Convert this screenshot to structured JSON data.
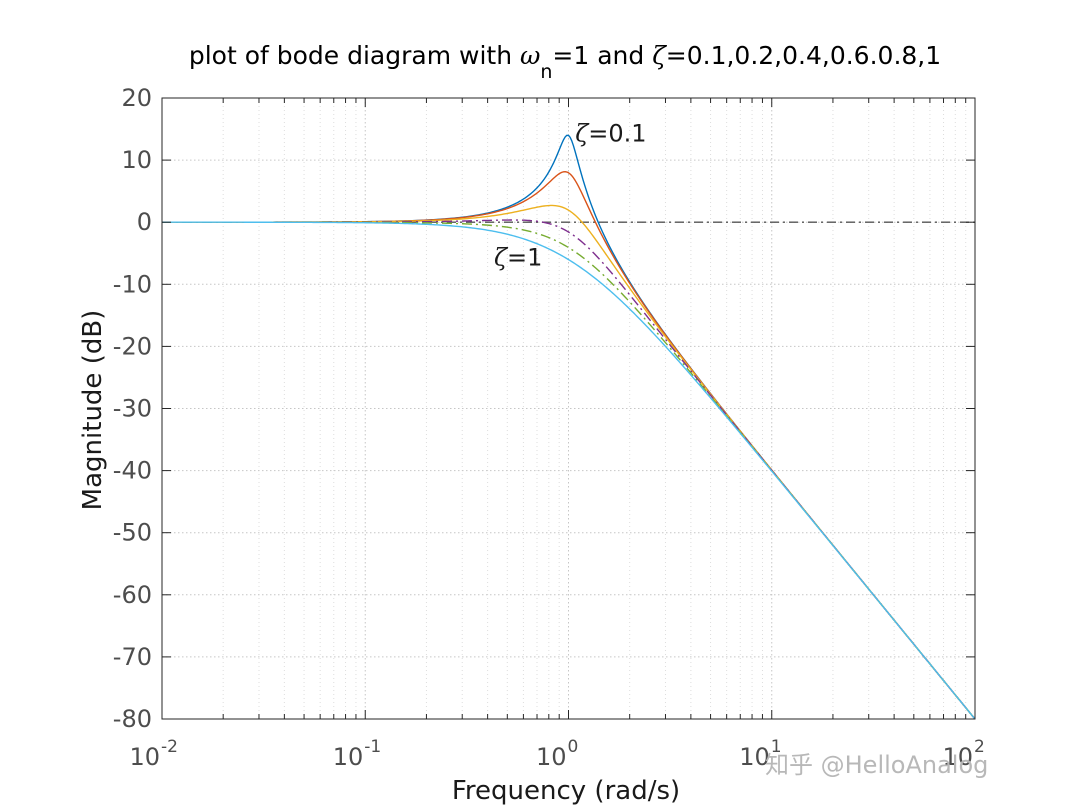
{
  "chart_data": {
    "type": "line",
    "title_parts": [
      "plot of bode diagram with ",
      "ω",
      "n",
      "=1 and ",
      "ζ",
      "=0.1,0.2,0.4,0.6.0.8,1"
    ],
    "xlabel": "Frequency  (rad/s)",
    "ylabel": "Magnitude (dB)",
    "xscale": "log",
    "xlim": [
      0.01,
      100
    ],
    "ylim": [
      -80,
      20
    ],
    "grid": true,
    "x_ticks": [
      {
        "base": "10",
        "exp": "-2",
        "value": 0.01
      },
      {
        "base": "10",
        "exp": "-1",
        "value": 0.1
      },
      {
        "base": "10",
        "exp": "0",
        "value": 1
      },
      {
        "base": "10",
        "exp": "1",
        "value": 10
      },
      {
        "base": "10",
        "exp": "2",
        "value": 100
      }
    ],
    "y_ticks": [
      "20",
      "10",
      "0",
      "-10",
      "-20",
      "-30",
      "-40",
      "-50",
      "-60",
      "-70",
      "-80"
    ],
    "wn": 1,
    "series": [
      {
        "zeta": 0.1,
        "color": "#0072bd",
        "dash": "solid"
      },
      {
        "zeta": 0.2,
        "color": "#d95319",
        "dash": "solid"
      },
      {
        "zeta": 0.4,
        "color": "#edb120",
        "dash": "solid"
      },
      {
        "zeta": 0.6,
        "color": "#7e2f8e",
        "dash": "dashdot"
      },
      {
        "zeta": 0.8,
        "color": "#77ac30",
        "dash": "dashdot"
      },
      {
        "zeta": 1.0,
        "color": "#4dbeee",
        "dash": "solid"
      }
    ],
    "reference_line": {
      "y": 0,
      "color": "#555555",
      "dash": "dashdot"
    },
    "annotations": [
      {
        "symbol": "ζ",
        "text": "=0.1",
        "x": 1.08,
        "y": 13
      },
      {
        "symbol": "ζ",
        "text": "=1",
        "x": 0.43,
        "y": -7
      }
    ]
  },
  "watermark": "知乎 @HelloAnalog"
}
